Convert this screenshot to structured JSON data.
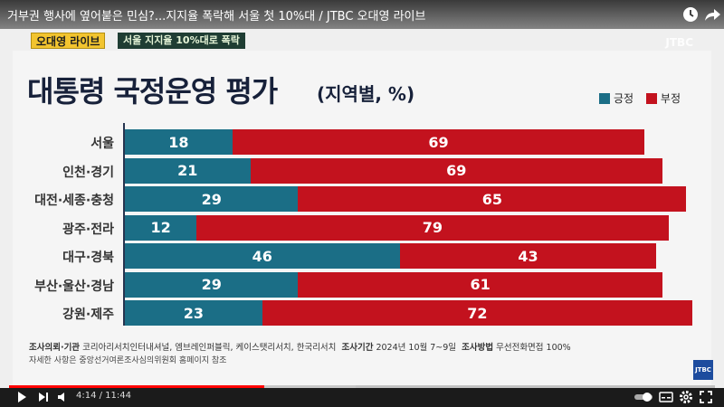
{
  "video_title": "거부권 행사에 옆어붙은 민심?...지지율 폭락해 서울 첫 10%대 / JTBC 오대영 라이브",
  "brand_tag": "오대영 라이브",
  "topic_tag": "서울 지지율 10%대로 폭락",
  "watermark": "JTBC",
  "chart_title": "대통령 국정운영 평가",
  "chart_subtitle": "(지역별, %)",
  "legend": {
    "positive": "긍정",
    "negative": "부정"
  },
  "colors": {
    "positive": "#1b6e86",
    "negative": "#c3121e",
    "progress": "#ff0000"
  },
  "chart_data": {
    "type": "bar",
    "orientation": "horizontal",
    "stacked": true,
    "categories": [
      "서울",
      "인천·경기",
      "대전·세종·충청",
      "광주·전라",
      "대구·경북",
      "부산·울산·경남",
      "강원·제주"
    ],
    "series": [
      {
        "name": "긍정",
        "values": [
          18,
          21,
          29,
          12,
          46,
          29,
          23
        ]
      },
      {
        "name": "부정",
        "values": [
          69,
          69,
          65,
          79,
          43,
          61,
          72
        ]
      }
    ],
    "legend_position": "top-right",
    "grid": false
  },
  "source": {
    "label1": "조사의뢰·기관",
    "text1": "코리아리서치인터내셔널, 엠브레인퍼블릭, 케이스탯리서치, 한국리서치",
    "label2": "조사기간",
    "text2": "2024년 10월 7~9일",
    "label3": "조사방법",
    "text3": "무선전화면접 100%"
  },
  "note": "자세한 사항은 중앙선거여론조사심의위원회 홈페이지 참조",
  "corner_logo": "JTBC",
  "player": {
    "time": "4:14 / 11:44",
    "progress": 0.361
  }
}
